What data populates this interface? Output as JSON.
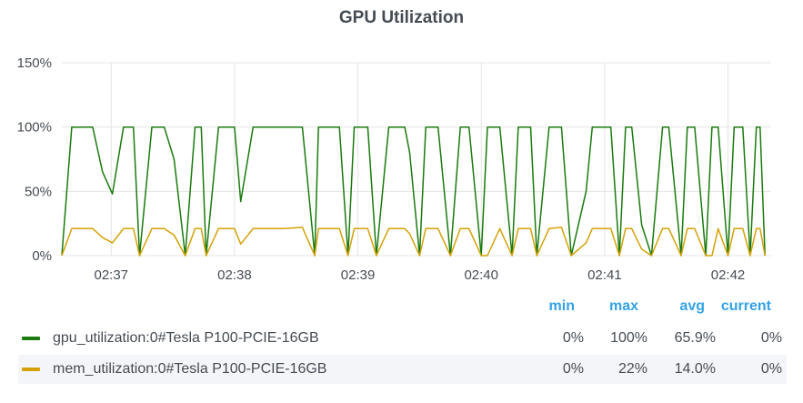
{
  "panel": {
    "title": "GPU Utilization"
  },
  "legend": {
    "headers": {
      "min": "min",
      "max": "max",
      "avg": "avg",
      "current": "current"
    },
    "rows": [
      {
        "name": "gpu_utilization:0#Tesla P100-PCIE-16GB",
        "color": "#1a7a0e",
        "min": "0%",
        "max": "100%",
        "avg": "65.9%",
        "current": "0%"
      },
      {
        "name": "mem_utilization:0#Tesla P100-PCIE-16GB",
        "color": "#d4a106",
        "min": "0%",
        "max": "22%",
        "avg": "14.0%",
        "current": "0%"
      }
    ]
  },
  "chart_data": {
    "type": "line",
    "title": "GPU Utilization",
    "y_ticks": [
      "0%",
      "50%",
      "100%",
      "150%"
    ],
    "ylim": [
      0,
      150
    ],
    "x_ticks": [
      "02:37",
      "02:38",
      "02:39",
      "02:40",
      "02:41",
      "02:42"
    ],
    "x_tick_values": [
      2.2,
      3.2,
      4.2,
      5.2,
      6.2,
      7.2
    ],
    "xlim": [
      1.8,
      7.55
    ],
    "grid": true,
    "series": [
      {
        "name": "gpu_utilization:0#Tesla P100-PCIE-16GB",
        "color": "#1a7a0e",
        "x": [
          1.8,
          1.88,
          2.05,
          2.13,
          2.21,
          2.3,
          2.38,
          2.43,
          2.53,
          2.63,
          2.71,
          2.8,
          2.88,
          2.93,
          2.97,
          3.07,
          3.2,
          3.25,
          3.35,
          3.43,
          3.47,
          3.52,
          3.6,
          3.75,
          3.85,
          3.88,
          4.05,
          4.12,
          4.17,
          4.28,
          4.35,
          4.45,
          4.58,
          4.62,
          4.7,
          4.75,
          4.85,
          4.95,
          5.03,
          5.1,
          5.2,
          5.25,
          5.35,
          5.45,
          5.5,
          5.6,
          5.65,
          5.75,
          5.85,
          5.93,
          6.05,
          6.1,
          6.25,
          6.32,
          6.37,
          6.42,
          6.5,
          6.58,
          6.67,
          6.72,
          6.82,
          6.87,
          6.93,
          7.02,
          7.07,
          7.12,
          7.2,
          7.25,
          7.32,
          7.38,
          7.43,
          7.46,
          7.5
        ],
        "y": [
          0,
          100,
          100,
          65,
          48,
          100,
          100,
          0,
          100,
          100,
          75,
          0,
          100,
          100,
          0,
          100,
          100,
          42,
          100,
          100,
          100,
          100,
          100,
          100,
          0,
          100,
          100,
          0,
          100,
          100,
          0,
          100,
          100,
          80,
          0,
          100,
          100,
          0,
          100,
          100,
          0,
          100,
          100,
          0,
          100,
          100,
          0,
          100,
          100,
          0,
          50,
          100,
          100,
          0,
          100,
          100,
          24,
          0,
          100,
          100,
          0,
          100,
          100,
          0,
          100,
          100,
          0,
          100,
          100,
          0,
          100,
          100,
          0
        ]
      },
      {
        "name": "mem_utilization:0#Tesla P100-PCIE-16GB",
        "color": "#d4a106",
        "x": [
          1.8,
          1.88,
          2.05,
          2.13,
          2.21,
          2.3,
          2.38,
          2.43,
          2.53,
          2.63,
          2.71,
          2.8,
          2.88,
          2.93,
          2.97,
          3.07,
          3.2,
          3.25,
          3.35,
          3.43,
          3.47,
          3.52,
          3.6,
          3.75,
          3.85,
          3.88,
          4.05,
          4.12,
          4.17,
          4.28,
          4.35,
          4.45,
          4.58,
          4.62,
          4.7,
          4.75,
          4.85,
          4.95,
          5.03,
          5.1,
          5.2,
          5.25,
          5.35,
          5.45,
          5.5,
          5.6,
          5.65,
          5.75,
          5.85,
          5.93,
          6.05,
          6.1,
          6.25,
          6.32,
          6.37,
          6.42,
          6.5,
          6.58,
          6.67,
          6.72,
          6.82,
          6.87,
          6.93,
          7.02,
          7.07,
          7.12,
          7.2,
          7.25,
          7.32,
          7.38,
          7.43,
          7.46,
          7.5
        ],
        "y": [
          0,
          21,
          21,
          14,
          10,
          21,
          21,
          0,
          21,
          21,
          16,
          0,
          21,
          21,
          0,
          21,
          21,
          9,
          21,
          21,
          21,
          21,
          21,
          22,
          0,
          21,
          21,
          0,
          21,
          21,
          0,
          21,
          21,
          17,
          0,
          21,
          21,
          0,
          21,
          21,
          0,
          0,
          21,
          0,
          21,
          21,
          0,
          21,
          22,
          0,
          10,
          21,
          21,
          0,
          21,
          21,
          5,
          0,
          21,
          21,
          0,
          21,
          21,
          0,
          0,
          21,
          0,
          21,
          21,
          0,
          21,
          21,
          0
        ]
      }
    ]
  }
}
